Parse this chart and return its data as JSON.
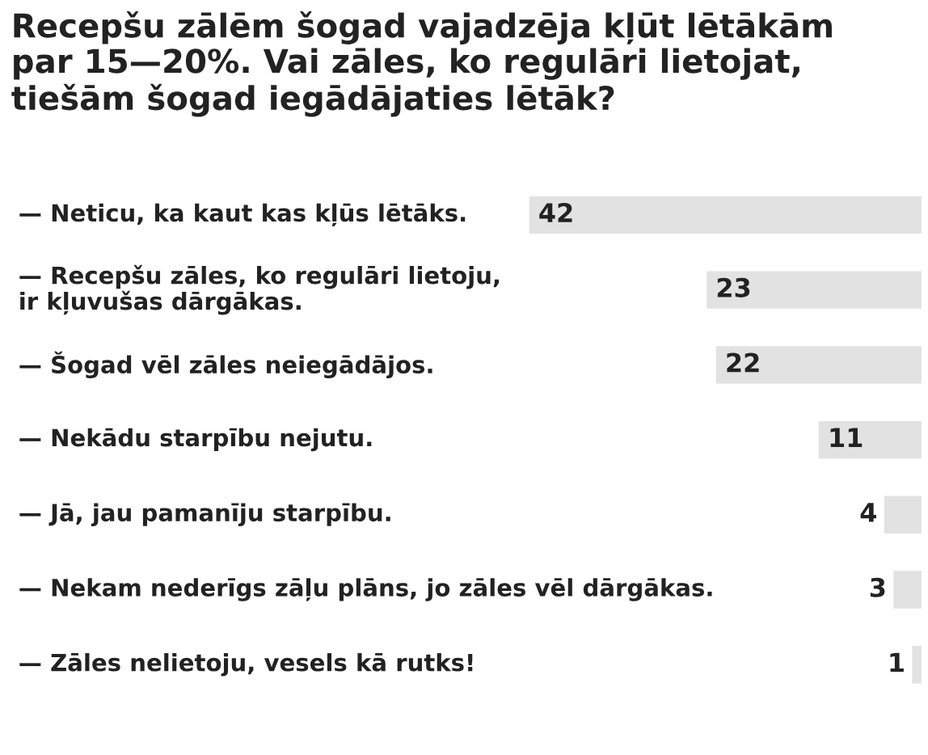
{
  "chart_data": {
    "type": "bar",
    "orientation": "horizontal",
    "title": "Recepšu zālēm šogad vajadzēja kļūt lētākām\npar 15—20%. Vai zāles, ko regulāri lietojat,\ntiešām šogad iegādājaties lētāk?",
    "categories": [
      "— Neticu, ka kaut kas kļūs lētāks.",
      "— Recepšu zāles, ko regulāri lietoju,\nir kļuvušas dārgākas.",
      "— Šogad vēl zāles neiegādājos.",
      "— Nekādu starpību nejutu.",
      "— Jā, jau pamanīju starpību.",
      "— Nekam nederīgs zāļu plāns, jo zāles vēl dārgākas.",
      "— Zāles nelietoju, vesels kā rutks!"
    ],
    "values": [
      42,
      23,
      22,
      11,
      4,
      3,
      1
    ],
    "color": "#e2e2e2",
    "data_labels": true
  }
}
